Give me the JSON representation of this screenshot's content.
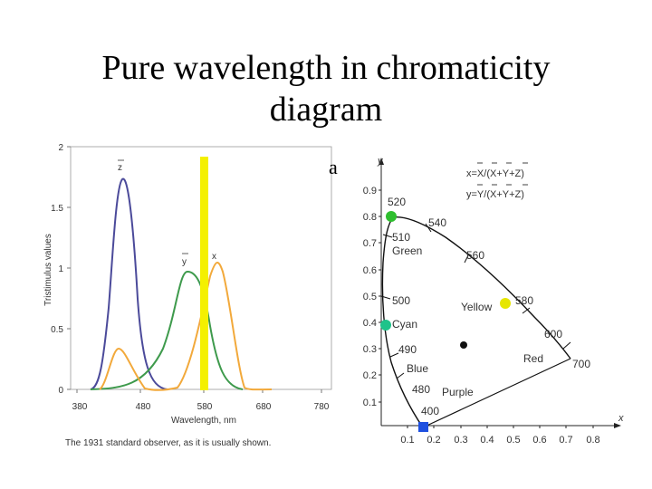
{
  "slide": {
    "title_line1": "Pure wavelength in chromaticity",
    "title_line2": "diagram"
  },
  "left_chart": {
    "ylabel": "Tristimulus values",
    "xlabel": "Wavelength, nm",
    "caption": "The 1931 standard observer, as it is usually shown.",
    "y_ticks": [
      "0",
      "0.5",
      "1",
      "1.5",
      "2"
    ],
    "x_ticks": [
      "380",
      "480",
      "580",
      "680",
      "780"
    ],
    "curve_labels": {
      "z": "z",
      "y": "y",
      "x": "x"
    },
    "stray_char": "a",
    "colors": {
      "z": "#4b4a9a",
      "y": "#3e9a4c",
      "x": "#f2a93b",
      "marker": "#f4f000"
    },
    "marker_wavelength": 580
  },
  "right_chart": {
    "axis_y_label": "y",
    "axis_x_label": "x",
    "y_ticks": [
      "0.1",
      "0.2",
      "0.3",
      "0.4",
      "0.5",
      "0.6",
      "0.7",
      "0.8",
      "0.9"
    ],
    "x_ticks": [
      "0.1",
      "0.2",
      "0.3",
      "0.4",
      "0.5",
      "0.6",
      "0.7",
      "0.8"
    ],
    "formula_x": "x=X/(X+Y+Z)",
    "formula_y": "y=Y/(X+Y+Z)",
    "wavelength_labels": [
      "520",
      "540",
      "510",
      "560",
      "500",
      "580",
      "490",
      "600",
      "480",
      "700",
      "400"
    ],
    "region_labels": {
      "green": "Green",
      "yellow": "Yellow",
      "cyan": "Cyan",
      "blue": "Blue",
      "red": "Red",
      "purple": "Purple"
    },
    "point_colors": {
      "green": "#2fbf2f",
      "yellow": "#e6e600",
      "cyan": "#1fc38a",
      "blue": "#1e50e0",
      "white": "#111111"
    }
  }
}
